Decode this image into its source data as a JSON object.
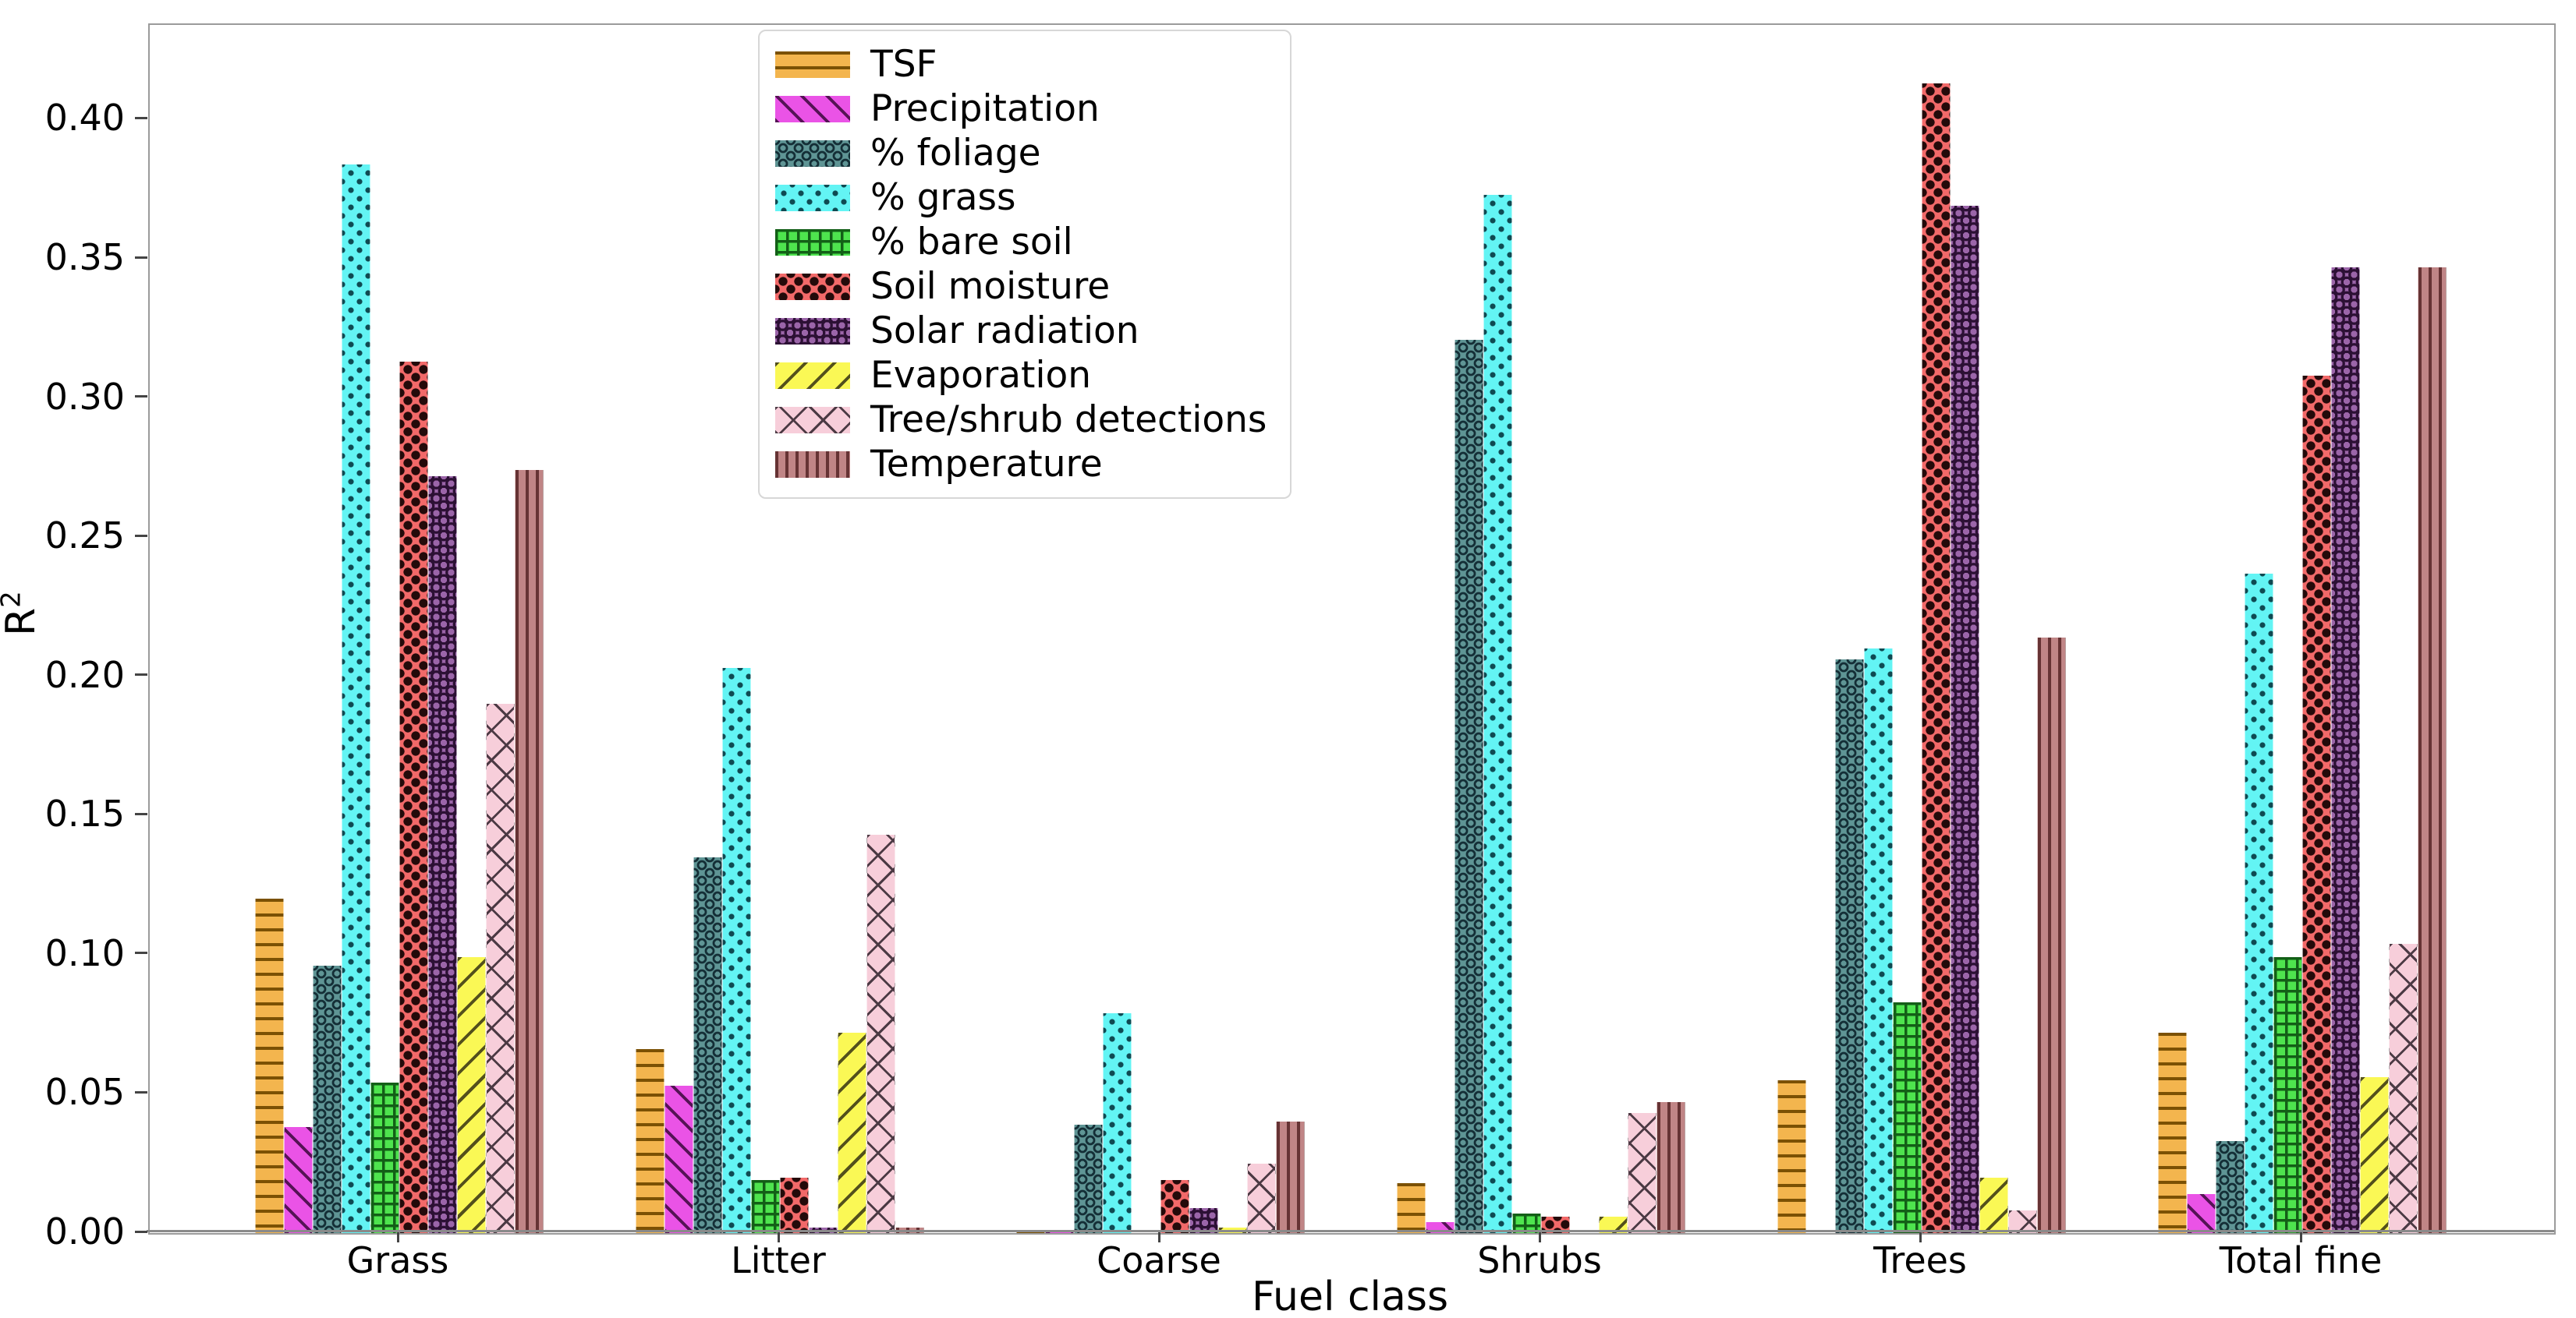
{
  "figure": {
    "ylabel_base": "R",
    "ylabel_sup": "2",
    "background": "#ffffff",
    "ytick_labels": [
      "0.00",
      "0.05",
      "0.10",
      "0.15",
      "0.20",
      "0.25",
      "0.30",
      "0.35",
      "0.40"
    ]
  },
  "chart_data": {
    "type": "bar",
    "title": "",
    "xlabel": "Fuel class",
    "ylabel": "R^2",
    "ylim": [
      0,
      0.434
    ],
    "ytick_step": 0.05,
    "grid": false,
    "legend_position": "upper center-left, inside axes",
    "categories": [
      "Grass",
      "Litter",
      "Coarse",
      "Shrubs",
      "Trees",
      "Total fine"
    ],
    "series": [
      {
        "name": "TSF",
        "color": "#F3B54E",
        "hatch": "-",
        "hatch_color": "#7b5104",
        "values": [
          0.12,
          0.066,
          0.001,
          0.018,
          0.055,
          0.072
        ]
      },
      {
        "name": "Precipitation",
        "color": "#EA53E6",
        "hatch": "/",
        "hatch_color": "#551355",
        "values": [
          0.038,
          0.053,
          0.001,
          0.004,
          0.0,
          0.014
        ]
      },
      {
        "name": "% foliage",
        "color": "#5F9595",
        "hatch": "o",
        "hatch_color": "#142e36",
        "values": [
          0.096,
          0.135,
          0.039,
          0.321,
          0.206,
          0.033
        ]
      },
      {
        "name": "% grass",
        "color": "#63F4F4",
        "hatch": ".",
        "hatch_color": "#0f4a52",
        "values": [
          0.384,
          0.203,
          0.079,
          0.373,
          0.21,
          0.237
        ]
      },
      {
        "name": "% bare soil",
        "color": "#4EE44E",
        "hatch": "+",
        "hatch_color": "#135f17",
        "values": [
          0.054,
          0.019,
          0.0,
          0.007,
          0.083,
          0.099
        ]
      },
      {
        "name": "Soil moisture",
        "color": "#F26969",
        "hatch": "*",
        "hatch_color": "#240a0a",
        "values": [
          0.313,
          0.02,
          0.019,
          0.006,
          0.413,
          0.308
        ]
      },
      {
        "name": "Solar radiation",
        "color": "#9B65A9",
        "hatch": "O",
        "hatch_color": "#2c1034",
        "values": [
          0.272,
          0.002,
          0.009,
          0.0,
          0.369,
          0.347
        ]
      },
      {
        "name": "Evaporation",
        "color": "#FAF855",
        "hatch": "\\",
        "hatch_color": "#53501c",
        "values": [
          0.099,
          0.072,
          0.002,
          0.006,
          0.02,
          0.056
        ]
      },
      {
        "name": "Tree/shrub detections",
        "color": "#F7CEDA",
        "hatch": "x",
        "hatch_color": "#4c3a44",
        "values": [
          0.19,
          0.143,
          0.025,
          0.043,
          0.008,
          0.104
        ]
      },
      {
        "name": "Temperature",
        "color": "#C08586",
        "hatch": "|",
        "hatch_color": "#663334",
        "values": [
          0.274,
          0.002,
          0.04,
          0.047,
          0.214,
          0.347
        ]
      }
    ]
  },
  "legend": {
    "items": [
      "TSF",
      "Precipitation",
      "% foliage",
      "% grass",
      "% bare soil",
      "Soil moisture",
      "Solar radiation",
      "Evaporation",
      "Tree/shrub detections",
      "Temperature"
    ]
  }
}
